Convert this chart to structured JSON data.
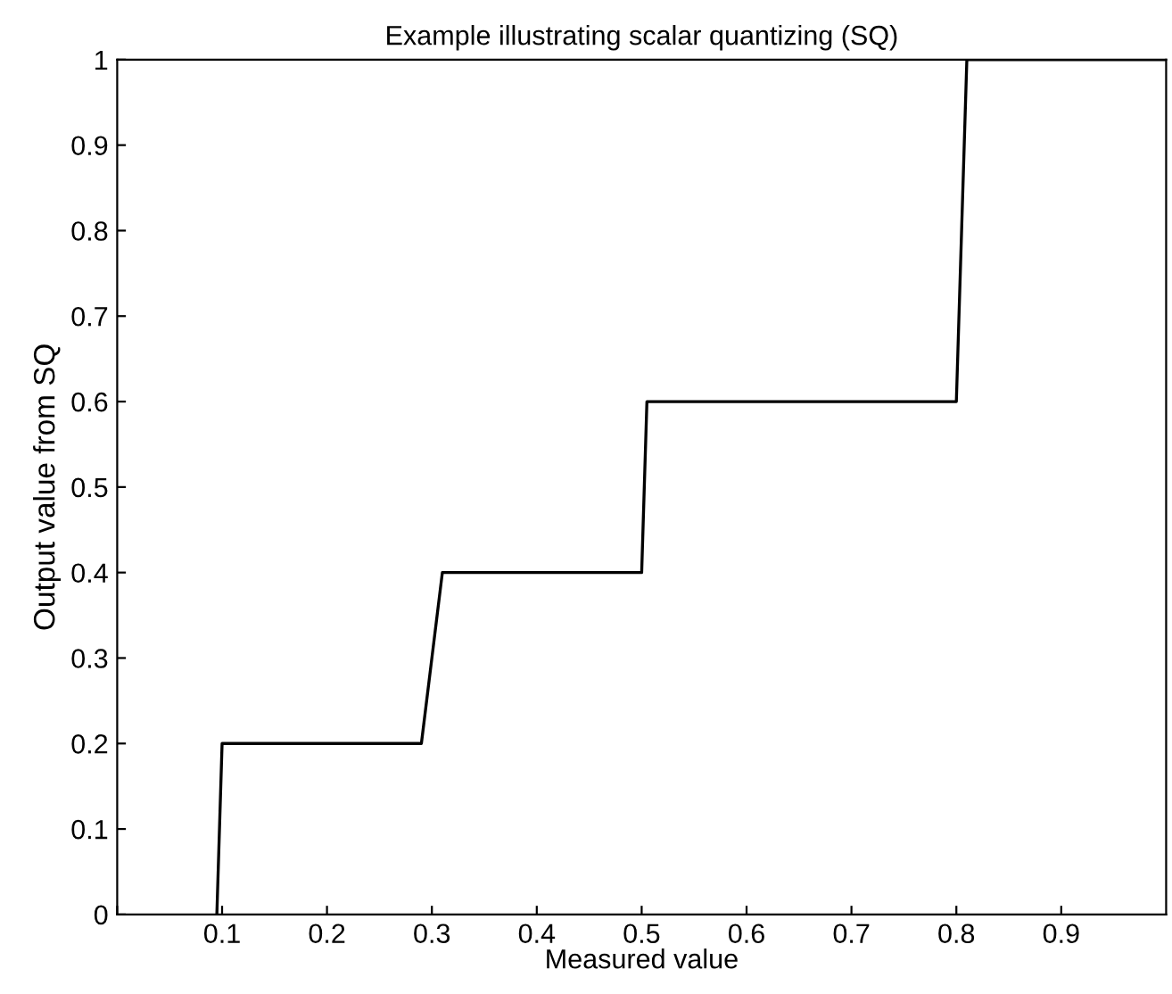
{
  "chart_data": {
    "type": "line",
    "title": "Example illustrating scalar quantizing (SQ)",
    "xlabel": "Measured value",
    "ylabel": "Output value from SQ",
    "series": [
      {
        "color": "#000000",
        "x": [
          0.095,
          0.1,
          0.29,
          0.31,
          0.5,
          0.505,
          0.8,
          0.81,
          1.0
        ],
        "values": [
          0,
          0.2,
          0.2,
          0.4,
          0.4,
          0.6,
          0.6,
          1.0,
          1.0
        ]
      }
    ],
    "xlim": [
      0,
      1
    ],
    "ylim": [
      0,
      1
    ],
    "xticks": [
      {
        "value": 0,
        "label": null
      },
      0.1,
      0.2,
      0.3,
      0.4,
      0.5,
      0.6,
      0.7,
      0.8,
      0.9
    ],
    "yticks": [
      0,
      0.1,
      0.2,
      0.3,
      0.4,
      0.5,
      0.6,
      0.7,
      0.8,
      0.9,
      1
    ],
    "grid": false,
    "legend": false,
    "marker": "none",
    "line_style": "solid"
  }
}
